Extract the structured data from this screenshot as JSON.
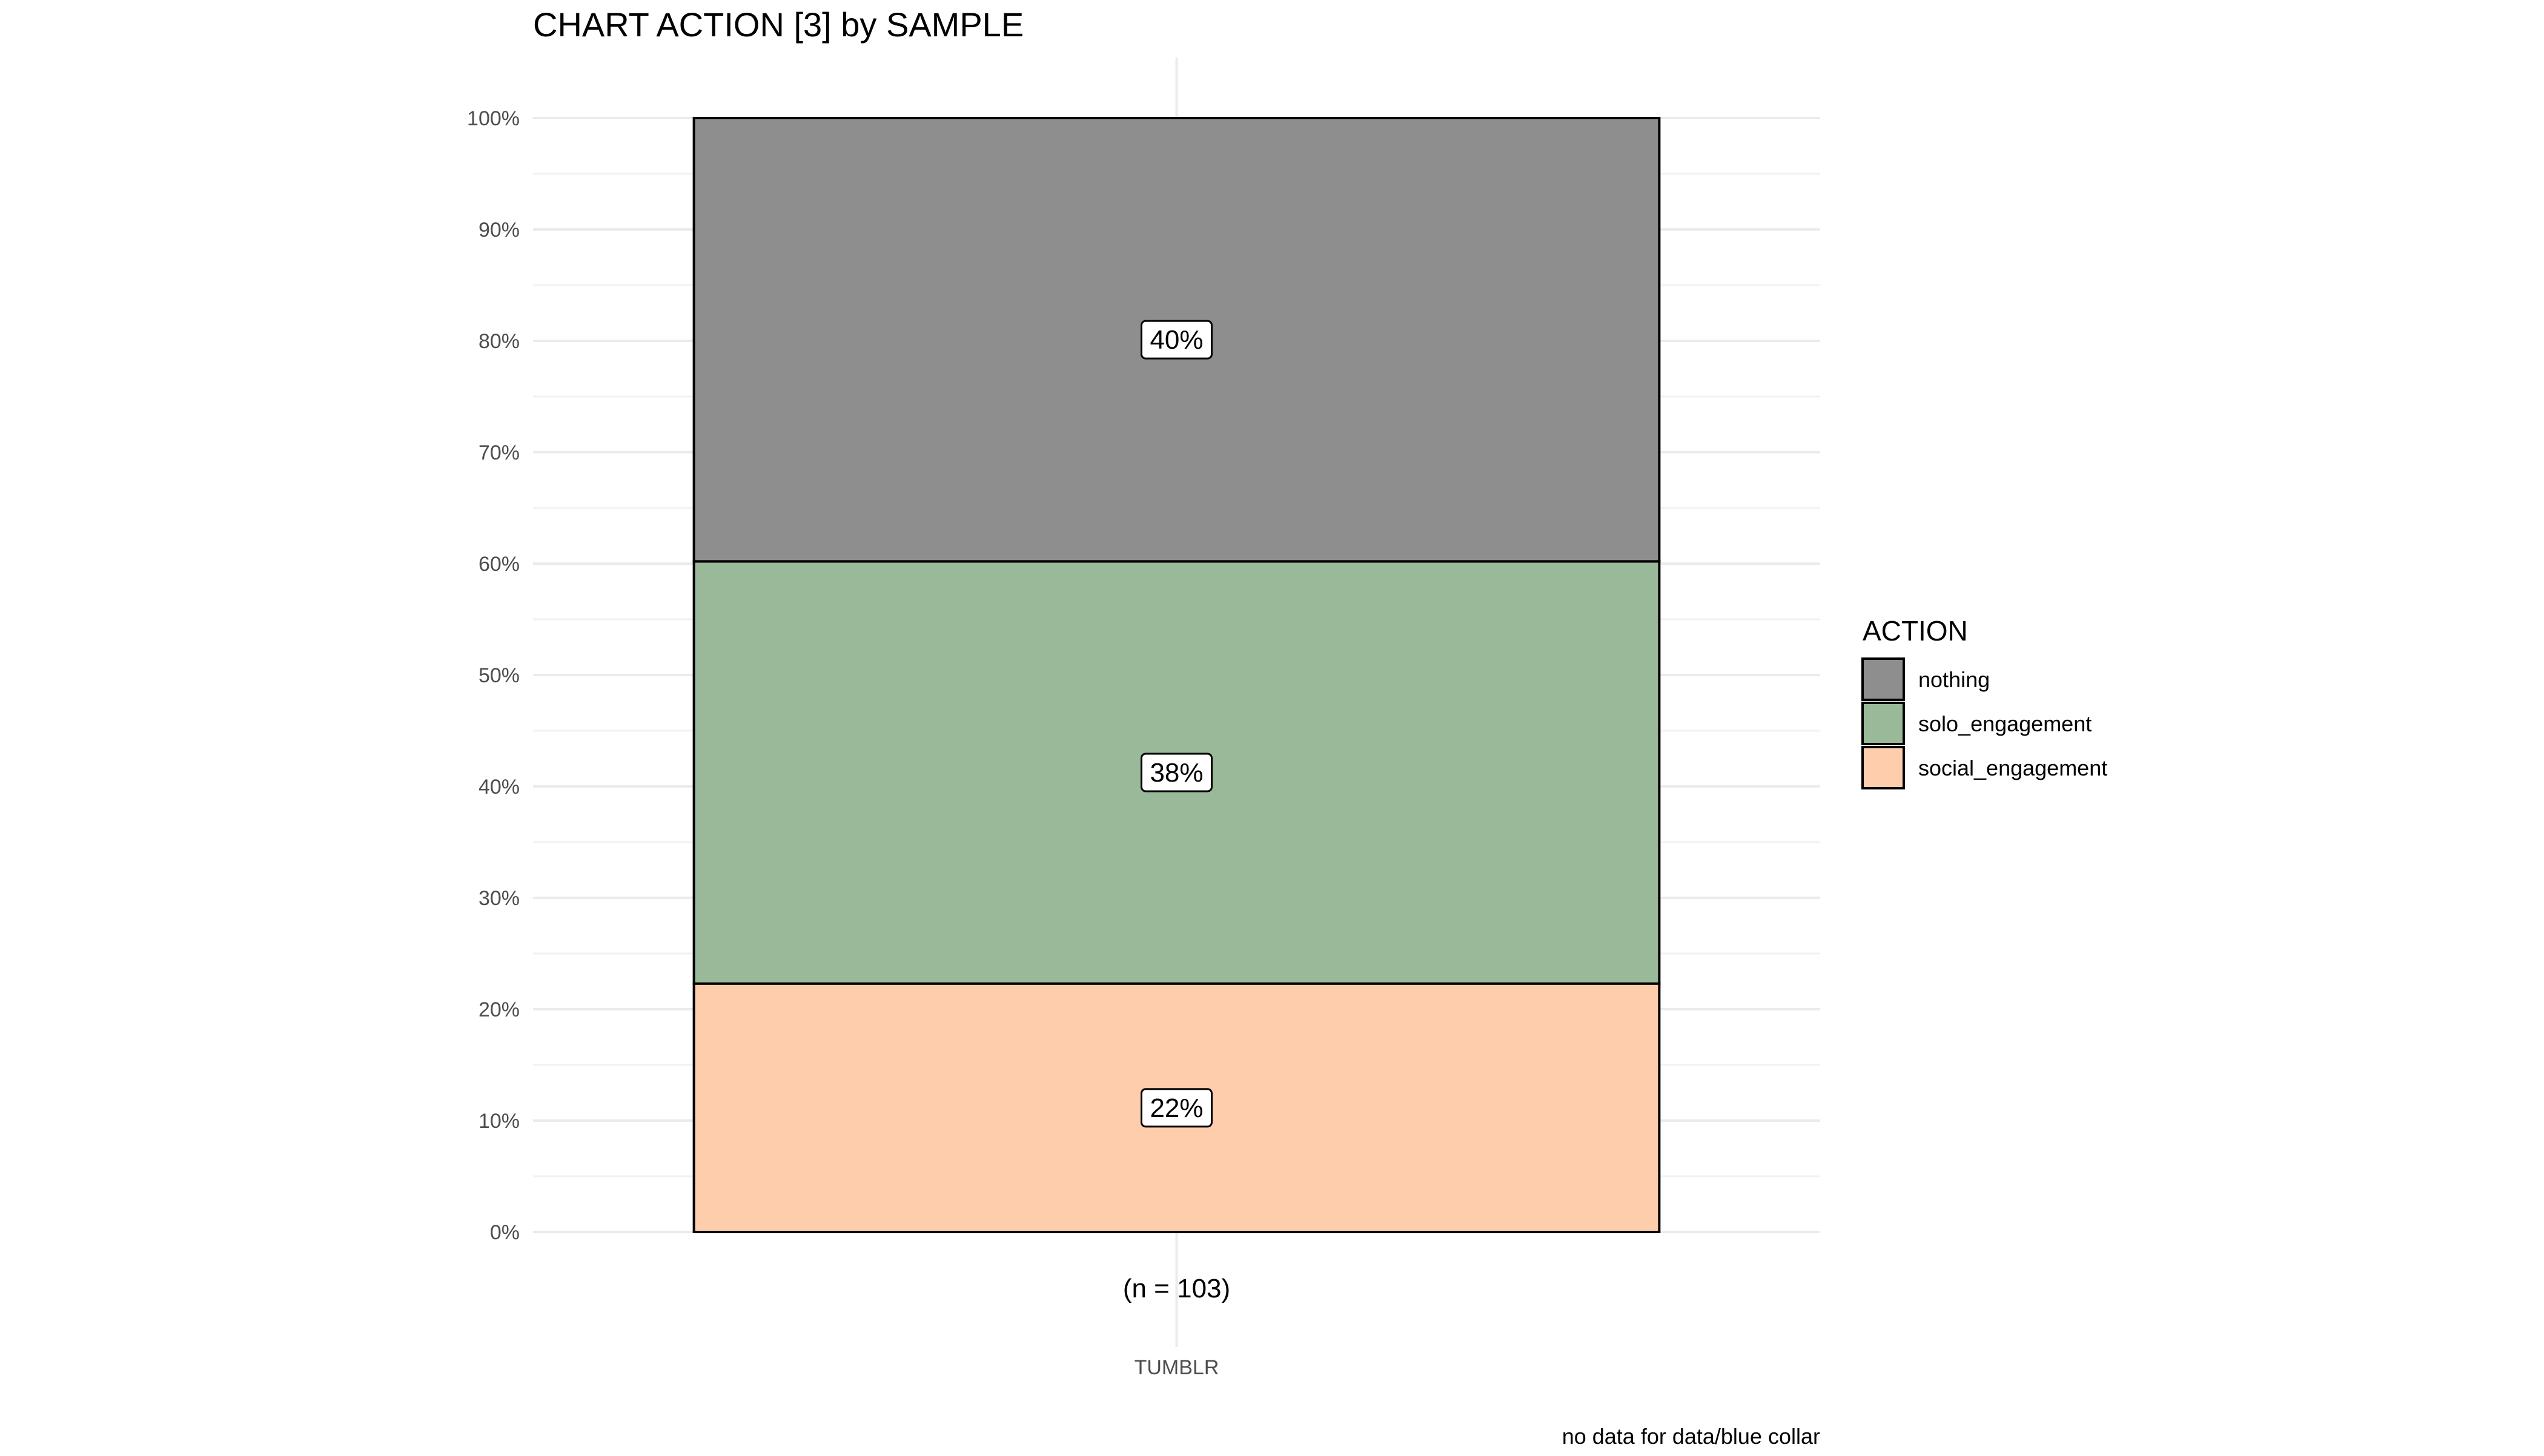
{
  "chart_data": {
    "type": "bar",
    "stacked": true,
    "title": "CHART ACTION [3] by SAMPLE",
    "categories": [
      "TUMBLR"
    ],
    "category_annotations": [
      "(n = 103)"
    ],
    "ylim": [
      0,
      100
    ],
    "y_ticks": [
      "0%",
      "10%",
      "20%",
      "30%",
      "40%",
      "50%",
      "60%",
      "70%",
      "80%",
      "90%",
      "100%"
    ],
    "grid": true,
    "legend": {
      "title": "ACTION",
      "position": "right",
      "entries": [
        "nothing",
        "solo_engagement",
        "social_engagement"
      ]
    },
    "series": [
      {
        "name": "social_engagement",
        "values": [
          22.3
        ],
        "label": "22%",
        "color": "#FDCDAC"
      },
      {
        "name": "solo_engagement",
        "values": [
          37.9
        ],
        "label": "38%",
        "color": "#9AB999"
      },
      {
        "name": "nothing",
        "values": [
          39.8
        ],
        "label": "40%",
        "color": "#8E8E8E"
      }
    ],
    "caption": "no data for data/blue collar"
  }
}
